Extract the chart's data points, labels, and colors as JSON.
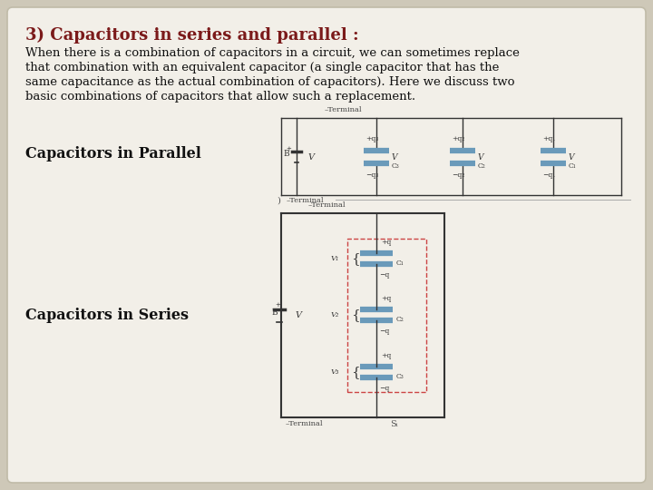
{
  "background_color": "#cec8b8",
  "card_color": "#f2efe8",
  "title": "3) Capacitors in series and parallel :",
  "title_color": "#7b1a1a",
  "title_fontsize": 13,
  "body_text": "When there is a combination of capacitors in a circuit, we can sometimes replace\nthat combination with an equivalent capacitor (a single capacitor that has the\nsame capacitance as the actual combination of capacitors). Here we discuss two\nbasic combinations of capacitors that allow such a replacement.",
  "body_fontsize": 9.5,
  "body_color": "#111111",
  "label_parallel": "Capacitors in Parallel",
  "label_series": "Capacitors in Series",
  "label_fontsize": 11.5,
  "label_color": "#111111"
}
